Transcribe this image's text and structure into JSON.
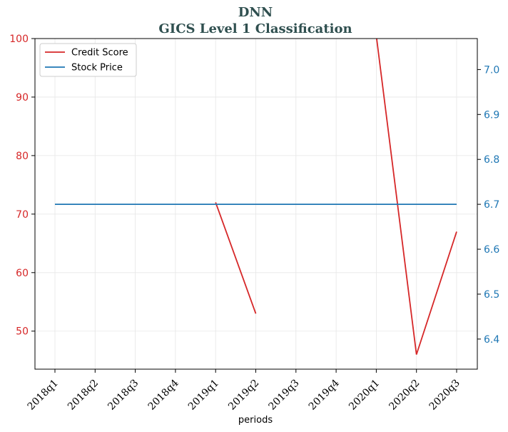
{
  "chart_data": {
    "type": "line",
    "title": "DNN",
    "subtitle": "GICS Level 1 Classification",
    "xlabel": "periods",
    "categories": [
      "2018q1",
      "2018q2",
      "2018q3",
      "2018q4",
      "2019q1",
      "2019q2",
      "2019q3",
      "2019q4",
      "2020q1",
      "2020q2",
      "2020q3"
    ],
    "y_left": {
      "ylim": [
        43.5,
        100
      ],
      "ticks": [
        50,
        60,
        70,
        80,
        90,
        100
      ],
      "color": "#d62728"
    },
    "y_right": {
      "ylim": [
        6.333,
        7.069
      ],
      "ticks": [
        6.4,
        6.5,
        6.6,
        6.7,
        6.8,
        6.9,
        7.0
      ],
      "tick_labels": [
        "6.4",
        "6.5",
        "6.6",
        "6.7",
        "6.8",
        "6.9",
        "7.0"
      ],
      "color": "#1f77b4"
    },
    "grid": true,
    "legend_position": "top-left",
    "series": [
      {
        "name": "Credit Score",
        "axis": "left",
        "color": "#d62728",
        "values": [
          null,
          null,
          null,
          null,
          72,
          53,
          null,
          null,
          100.5,
          46,
          67
        ]
      },
      {
        "name": "Stock Price",
        "axis": "right",
        "color": "#1f77b4",
        "values": [
          6.7,
          6.7,
          6.7,
          6.7,
          6.7,
          6.7,
          6.7,
          6.7,
          6.7,
          6.7,
          6.7
        ]
      }
    ]
  }
}
